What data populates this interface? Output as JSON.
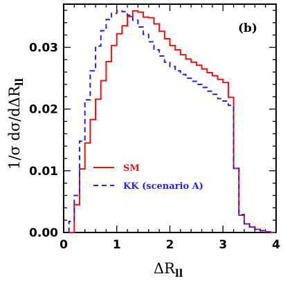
{
  "chart_data": {
    "type": "line",
    "panel_label": "(b)",
    "xlabel": "ΔR",
    "xlabel_sub": "ll",
    "ylabel": "1/σ  dσ/dΔR",
    "ylabel_sub": "ll",
    "xlim": [
      0,
      4
    ],
    "ylim": [
      0,
      0.037
    ],
    "x_ticks": [
      "0",
      "1",
      "2",
      "3",
      "4"
    ],
    "y_ticks": [
      "0.00",
      "0.01",
      "0.02",
      "0.03"
    ],
    "bin_width": 0.1,
    "bin_start": 0.1,
    "series": [
      {
        "name": "SM",
        "color": "#ee1111",
        "style": "solid",
        "values": [
          0.0,
          0.0045,
          0.0103,
          0.0145,
          0.0183,
          0.0216,
          0.0246,
          0.0277,
          0.0303,
          0.0322,
          0.0335,
          0.035,
          0.0359,
          0.0357,
          0.0349,
          0.0348,
          0.0338,
          0.0326,
          0.0314,
          0.0303,
          0.0296,
          0.0288,
          0.0281,
          0.0276,
          0.0271,
          0.0265,
          0.0259,
          0.0254,
          0.0248,
          0.0243,
          0.0219,
          0.0104,
          0.0028,
          0.0014,
          0.0009,
          0.0005,
          0.0003,
          0.0001,
          0.0
        ]
      },
      {
        "name": "KK (scenario A)",
        "color": "#2222ee",
        "style": "dashed",
        "values": [
          0.0018,
          0.006,
          0.0148,
          0.0215,
          0.0262,
          0.0302,
          0.0327,
          0.0345,
          0.0355,
          0.0359,
          0.0358,
          0.0352,
          0.0344,
          0.0333,
          0.0321,
          0.0309,
          0.0296,
          0.0286,
          0.0276,
          0.0269,
          0.0262,
          0.0256,
          0.025,
          0.0245,
          0.024,
          0.0235,
          0.0229,
          0.0224,
          0.0217,
          0.0213,
          0.0206,
          0.0104,
          0.0029,
          0.0014,
          0.0009,
          0.0005,
          0.0003,
          0.0001,
          0.0
        ]
      }
    ],
    "legend_position": "lower-left inside"
  }
}
